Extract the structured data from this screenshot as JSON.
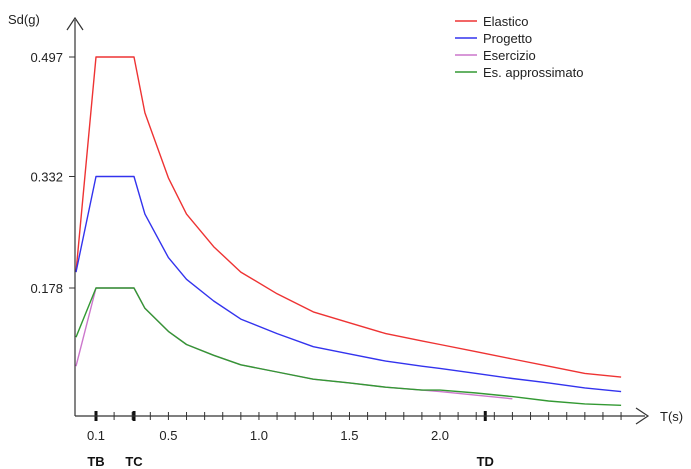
{
  "chart_data": {
    "type": "line",
    "ylabel": "Sd(g)",
    "xlabel": "T(s)",
    "xlim": [
      0,
      3.0
    ],
    "ylim": [
      0,
      0.55
    ],
    "x_ticks": [
      0.1,
      0.5,
      1.0,
      1.5,
      2.0
    ],
    "x_tick_labels": [
      "0.1",
      "0.5",
      "1.0",
      "1.5",
      "2.0"
    ],
    "y_ticks": [
      0.178,
      0.332,
      0.497
    ],
    "y_tick_labels": [
      "0.178",
      "0.332",
      "0.497"
    ],
    "minor_x_ticks": [
      0.1,
      0.2,
      0.3,
      0.4,
      0.5,
      0.6,
      0.7,
      0.8,
      0.9,
      1.0,
      1.1,
      1.2,
      1.3,
      1.4,
      1.5,
      1.6,
      1.7,
      1.8,
      1.9,
      2.0,
      2.1,
      2.2,
      2.3,
      2.4,
      2.5,
      2.6,
      2.7,
      2.8,
      2.9,
      3.0
    ],
    "periods": [
      {
        "label": "TB",
        "x": 0.1
      },
      {
        "label": "TC",
        "x": 0.31
      },
      {
        "label": "TD",
        "x": 2.25
      }
    ],
    "legend_position": "top-right",
    "series": [
      {
        "name": "Elastico",
        "color": "#ee3333",
        "points": [
          [
            0,
            0.2
          ],
          [
            0.1,
            0.497
          ],
          [
            0.31,
            0.497
          ],
          [
            0.37,
            0.42
          ],
          [
            0.5,
            0.33
          ],
          [
            0.6,
            0.28
          ],
          [
            0.75,
            0.235
          ],
          [
            0.9,
            0.2
          ],
          [
            1.1,
            0.17
          ],
          [
            1.3,
            0.145
          ],
          [
            1.5,
            0.13
          ],
          [
            1.7,
            0.115
          ],
          [
            1.9,
            0.105
          ],
          [
            2.0,
            0.1
          ],
          [
            2.2,
            0.09
          ],
          [
            2.4,
            0.08
          ],
          [
            2.6,
            0.07
          ],
          [
            2.8,
            0.06
          ],
          [
            3.0,
            0.055
          ]
        ]
      },
      {
        "name": "Progetto",
        "color": "#3333ee",
        "points": [
          [
            0,
            0.2
          ],
          [
            0.1,
            0.332
          ],
          [
            0.31,
            0.332
          ],
          [
            0.37,
            0.28
          ],
          [
            0.5,
            0.22
          ],
          [
            0.6,
            0.19
          ],
          [
            0.75,
            0.16
          ],
          [
            0.9,
            0.135
          ],
          [
            1.1,
            0.115
          ],
          [
            1.3,
            0.097
          ],
          [
            1.5,
            0.087
          ],
          [
            1.7,
            0.077
          ],
          [
            1.9,
            0.07
          ],
          [
            2.0,
            0.067
          ],
          [
            2.2,
            0.06
          ],
          [
            2.4,
            0.053
          ],
          [
            2.6,
            0.047
          ],
          [
            2.8,
            0.04
          ],
          [
            3.0,
            0.035
          ]
        ]
      },
      {
        "name": "Esercizio",
        "color": "#cc77cc",
        "points": [
          [
            0,
            0.07
          ],
          [
            0.1,
            0.178
          ],
          [
            0.31,
            0.178
          ],
          [
            0.37,
            0.15
          ],
          [
            0.5,
            0.118
          ],
          [
            0.6,
            0.1
          ],
          [
            0.75,
            0.085
          ],
          [
            0.9,
            0.072
          ],
          [
            1.1,
            0.062
          ],
          [
            1.3,
            0.052
          ],
          [
            1.5,
            0.047
          ],
          [
            1.7,
            0.041
          ],
          [
            1.9,
            0.037
          ],
          [
            2.0,
            0.035
          ],
          [
            2.2,
            0.03
          ],
          [
            2.4,
            0.025
          ]
        ]
      },
      {
        "name": "Es. approssimato",
        "color": "#339933",
        "points": [
          [
            0,
            0.11
          ],
          [
            0.1,
            0.178
          ],
          [
            0.31,
            0.178
          ],
          [
            0.37,
            0.15
          ],
          [
            0.5,
            0.118
          ],
          [
            0.6,
            0.1
          ],
          [
            0.75,
            0.085
          ],
          [
            0.9,
            0.072
          ],
          [
            1.1,
            0.062
          ],
          [
            1.3,
            0.052
          ],
          [
            1.5,
            0.047
          ],
          [
            1.7,
            0.041
          ],
          [
            1.9,
            0.037
          ],
          [
            2.0,
            0.037
          ],
          [
            2.2,
            0.033
          ],
          [
            2.4,
            0.028
          ],
          [
            2.6,
            0.022
          ],
          [
            2.8,
            0.018
          ],
          [
            3.0,
            0.016
          ]
        ]
      }
    ]
  }
}
